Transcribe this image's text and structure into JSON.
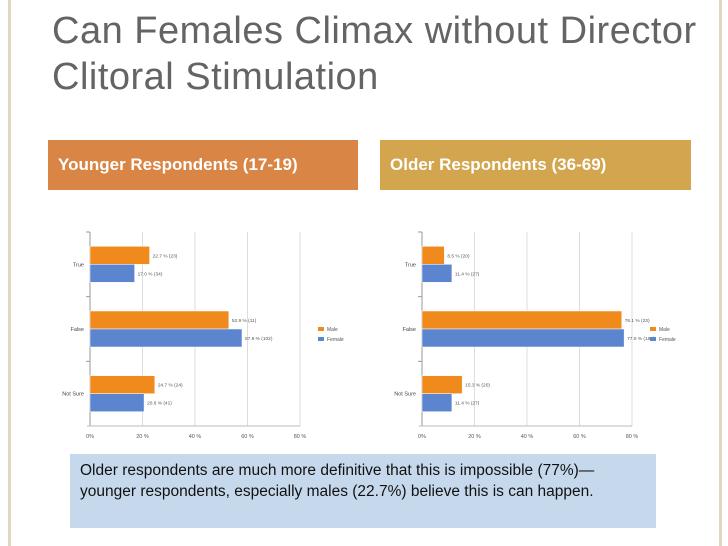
{
  "slide": {
    "title": "Can Females Climax without Director Clitoral Stimulation",
    "left_header": "Younger Respondents (17-19)",
    "right_header": "Older Respondents (36-69)",
    "caption": "Older respondents are much more definitive that this is impossible (77%)—younger respondents, especially males (22.7%) believe this is can happen."
  },
  "colors": {
    "male": "#f08a1c",
    "female": "#5b86cf",
    "left_header": "#d98546",
    "right_header": "#d3a54e",
    "caption_bg": "#c6d9ec"
  },
  "chart_data": [
    {
      "type": "bar",
      "orientation": "horizontal",
      "categories": [
        "True",
        "False",
        "Not Sure"
      ],
      "series": [
        {
          "name": "Male",
          "values": [
            22.7,
            52.9,
            24.7
          ],
          "labels": [
            "22.7 % (23)",
            "52.9 % (11)",
            "24.7 % (24)"
          ]
        },
        {
          "name": "Female",
          "values": [
            17.0,
            57.9,
            20.6
          ],
          "labels": [
            "17.0 % (34)",
            "57.9 % (102)",
            "20.6 % (41)"
          ]
        }
      ],
      "xlim": [
        0,
        80
      ],
      "xticks": [
        "0%",
        "20 %",
        "40 %",
        "60 %",
        "80 %"
      ],
      "legend": "right"
    },
    {
      "type": "bar",
      "orientation": "horizontal",
      "categories": [
        "True",
        "False",
        "Not Sure"
      ],
      "series": [
        {
          "name": "Male",
          "values": [
            8.5,
            76.1,
            15.3
          ],
          "labels": [
            "8.5 % (20)",
            "76.1 % (23)",
            "15.3 % (20)"
          ]
        },
        {
          "name": "Female",
          "values": [
            11.4,
            77.0,
            11.4
          ],
          "labels": [
            "11.4 % (27)",
            "77.0 % (183)",
            "11.4 % (27)"
          ]
        }
      ],
      "xlim": [
        0,
        80
      ],
      "xticks": [
        "0%",
        "20 %",
        "40 %",
        "60 %",
        "80 %"
      ],
      "legend": "right"
    }
  ]
}
